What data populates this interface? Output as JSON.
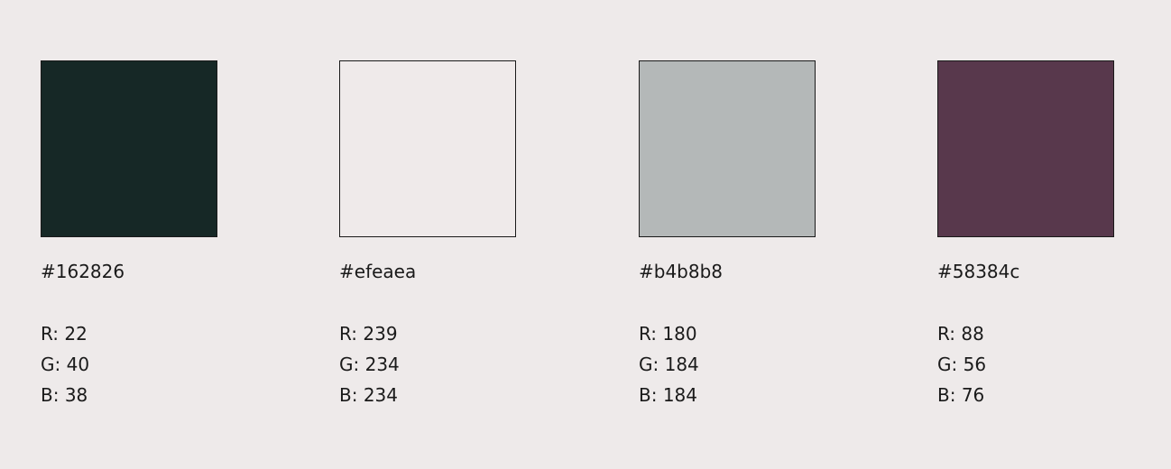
{
  "colors": [
    {
      "hex": "#162826",
      "swatch_color": "#162826",
      "r": "R: 22",
      "g": "G: 40",
      "b": "B: 38"
    },
    {
      "hex": "#efeaea",
      "swatch_color": "#efeaea",
      "r": "R: 239",
      "g": "G: 234",
      "b": "B: 234"
    },
    {
      "hex": "#b4b8b8",
      "swatch_color": "#b4b8b8",
      "r": "R: 180",
      "g": "G: 184",
      "b": "B: 184"
    },
    {
      "hex": "#58384c",
      "swatch_color": "#58384c",
      "r": "R: 88",
      "g": "G: 56",
      "b": "B: 76"
    }
  ]
}
